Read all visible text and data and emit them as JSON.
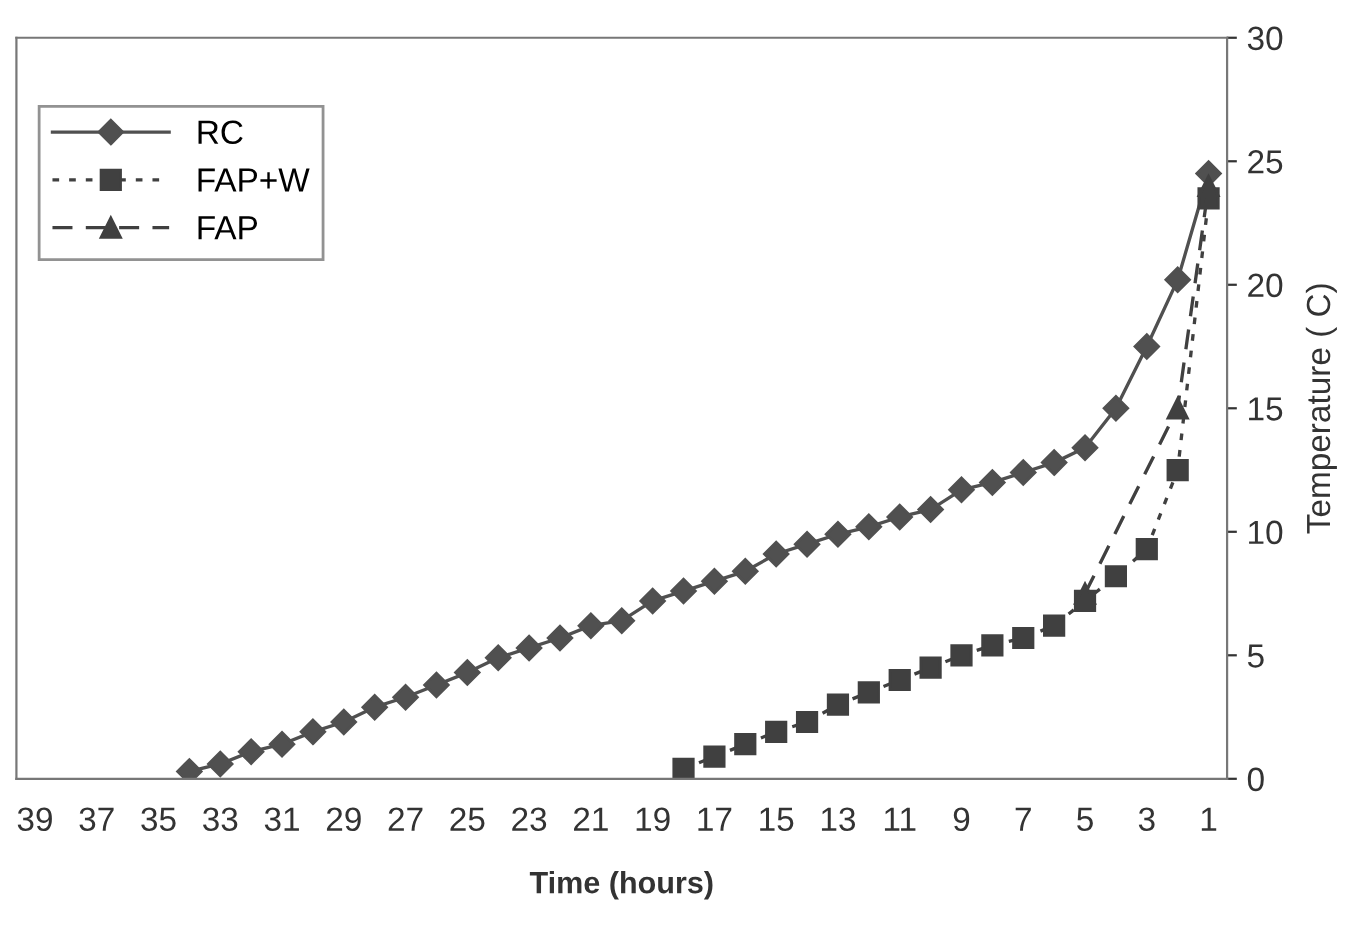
{
  "chart_data": {
    "type": "line",
    "xlabel": "Time (hours)",
    "ylabel": "Temperature ( C)",
    "xlim": [
      39.6,
      0.4
    ],
    "xticks": [
      39,
      37,
      35,
      33,
      31,
      29,
      27,
      25,
      23,
      21,
      19,
      17,
      15,
      13,
      11,
      9,
      7,
      5,
      3,
      1
    ],
    "ylim": [
      0,
      30
    ],
    "yticks": [
      0,
      5,
      10,
      15,
      20,
      25,
      30
    ],
    "grid": false,
    "legend": "top left",
    "series": [
      {
        "name": "RC",
        "color": "#505050",
        "marker": "diamond",
        "line_style": "solid",
        "x": [
          34,
          33,
          32,
          31,
          30,
          29,
          28,
          27,
          26,
          25,
          24,
          23,
          22,
          21,
          20,
          19,
          18,
          17,
          16,
          15,
          14,
          13,
          12,
          11,
          10,
          9,
          8,
          7,
          6,
          5,
          4,
          3,
          2,
          1
        ],
        "values": [
          0.3,
          0.6,
          1.1,
          1.4,
          1.9,
          2.3,
          2.9,
          3.3,
          3.8,
          4.3,
          4.9,
          5.3,
          5.7,
          6.2,
          6.4,
          7.2,
          7.6,
          8.0,
          8.4,
          9.1,
          9.5,
          9.9,
          10.2,
          10.6,
          10.9,
          11.7,
          12.0,
          12.4,
          12.8,
          13.4,
          15.0,
          17.5,
          20.2,
          24.5
        ]
      },
      {
        "name": "FAP+W",
        "color": "#404040",
        "marker": "square",
        "line_style": "dotted",
        "x": [
          18,
          17,
          16,
          15,
          14,
          13,
          12,
          11,
          10,
          9,
          8,
          7,
          6,
          5,
          4,
          3,
          2,
          1
        ],
        "values": [
          0.4,
          0.9,
          1.4,
          1.9,
          2.3,
          3.0,
          3.5,
          4.0,
          4.5,
          5.0,
          5.4,
          5.7,
          6.2,
          7.2,
          8.2,
          9.3,
          12.5,
          23.5
        ]
      },
      {
        "name": "FAP",
        "color": "#404040",
        "marker": "triangle",
        "line_style": "dashed",
        "x": [
          5,
          2,
          1
        ],
        "values": [
          7.5,
          15.0,
          24.0
        ]
      }
    ]
  }
}
